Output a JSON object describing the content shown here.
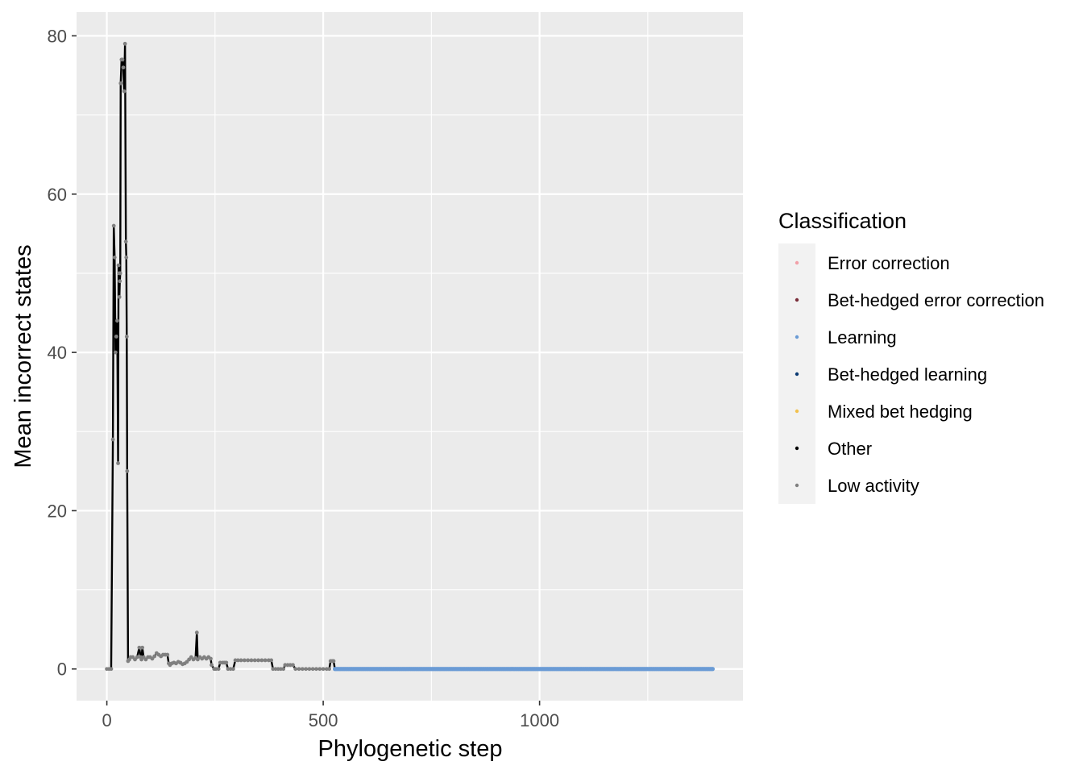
{
  "chart_data": {
    "type": "line",
    "title": "",
    "xlabel": "Phylogenetic step",
    "ylabel": "Mean incorrect states",
    "xlim": [
      -70,
      1470
    ],
    "ylim": [
      -4,
      83
    ],
    "x_ticks": [
      0,
      500,
      1000
    ],
    "x_minor_ticks": [
      250,
      750,
      1250
    ],
    "y_ticks": [
      0,
      20,
      40,
      60,
      80
    ],
    "y_minor_ticks": [
      10,
      30,
      50,
      70
    ],
    "grid": true,
    "line_color": "#000000",
    "legend": {
      "title": "Classification",
      "position": "right",
      "items": [
        {
          "label": "Error correction",
          "color": "#f2a0a8"
        },
        {
          "label": "Bet-hedged error correction",
          "color": "#7a2e3a"
        },
        {
          "label": "Learning",
          "color": "#6a9bd5"
        },
        {
          "label": "Bet-hedged learning",
          "color": "#0b3a73"
        },
        {
          "label": "Mixed bet hedging",
          "color": "#f2c14e"
        },
        {
          "label": "Other",
          "color": "#000000"
        },
        {
          "label": "Low activity",
          "color": "#808080"
        }
      ]
    },
    "series": [
      {
        "name": "Low activity",
        "color": "#808080",
        "points": [
          [
            0,
            0
          ],
          [
            5,
            0
          ],
          [
            10,
            0
          ],
          [
            14,
            29
          ],
          [
            16,
            56
          ],
          [
            18,
            52
          ],
          [
            20,
            40
          ],
          [
            22,
            42
          ],
          [
            24,
            44
          ],
          [
            26,
            26
          ],
          [
            27,
            51
          ],
          [
            28,
            50
          ],
          [
            29,
            47
          ],
          [
            30,
            49
          ],
          [
            31,
            50
          ],
          [
            32,
            74
          ],
          [
            34,
            77
          ],
          [
            36,
            77
          ],
          [
            38,
            76
          ],
          [
            40,
            73
          ],
          [
            42,
            79
          ],
          [
            44,
            54
          ],
          [
            45,
            52
          ],
          [
            46,
            42
          ],
          [
            47,
            25
          ],
          [
            49,
            1
          ],
          [
            52,
            1.2
          ],
          [
            55,
            1.5
          ],
          [
            60,
            1.5
          ],
          [
            65,
            1.2
          ],
          [
            70,
            1.5
          ],
          [
            75,
            2.7
          ],
          [
            78,
            1.5
          ],
          [
            80,
            1.2
          ],
          [
            82,
            2.7
          ],
          [
            85,
            1.5
          ],
          [
            90,
            1.2
          ],
          [
            95,
            1.5
          ],
          [
            100,
            1.5
          ],
          [
            105,
            1.3
          ],
          [
            110,
            1.6
          ],
          [
            115,
            2
          ],
          [
            120,
            1.8
          ],
          [
            125,
            1.6
          ],
          [
            130,
            1.8
          ],
          [
            135,
            1.8
          ],
          [
            140,
            1.8
          ],
          [
            143,
            0.7
          ],
          [
            146,
            0.5
          ],
          [
            150,
            0.7
          ],
          [
            155,
            0.8
          ],
          [
            160,
            0.7
          ],
          [
            165,
            0.9
          ],
          [
            170,
            0.8
          ],
          [
            175,
            0.6
          ],
          [
            180,
            0.7
          ],
          [
            185,
            0.9
          ],
          [
            190,
            1.2
          ],
          [
            195,
            1.5
          ],
          [
            200,
            1.2
          ],
          [
            205,
            1.4
          ],
          [
            208,
            4.6
          ],
          [
            210,
            1.2
          ],
          [
            215,
            1.5
          ],
          [
            220,
            1.3
          ],
          [
            225,
            1.5
          ],
          [
            230,
            1.3
          ],
          [
            235,
            1.5
          ],
          [
            240,
            1.3
          ],
          [
            242,
            0.5
          ],
          [
            248,
            0
          ],
          [
            252,
            0
          ],
          [
            258,
            0
          ],
          [
            262,
            0.8
          ],
          [
            268,
            0.8
          ],
          [
            272,
            0.8
          ],
          [
            276,
            0.8
          ],
          [
            280,
            0
          ],
          [
            286,
            0
          ],
          [
            292,
            0
          ],
          [
            297,
            1.1
          ],
          [
            303,
            1.1
          ],
          [
            310,
            1.1
          ],
          [
            318,
            1.1
          ],
          [
            326,
            1.1
          ],
          [
            334,
            1.1
          ],
          [
            342,
            1.1
          ],
          [
            350,
            1.1
          ],
          [
            358,
            1.1
          ],
          [
            366,
            1.1
          ],
          [
            374,
            1.1
          ],
          [
            380,
            1.1
          ],
          [
            384,
            0
          ],
          [
            390,
            0
          ],
          [
            396,
            0
          ],
          [
            402,
            0
          ],
          [
            408,
            0
          ],
          [
            412,
            0.5
          ],
          [
            418,
            0.5
          ],
          [
            424,
            0.5
          ],
          [
            430,
            0.5
          ],
          [
            436,
            0
          ],
          [
            444,
            0
          ],
          [
            452,
            0
          ],
          [
            460,
            0
          ],
          [
            468,
            0
          ],
          [
            476,
            0
          ],
          [
            484,
            0
          ],
          [
            492,
            0
          ],
          [
            500,
            0
          ],
          [
            508,
            0
          ],
          [
            514,
            0
          ],
          [
            517,
            1
          ],
          [
            521,
            1
          ],
          [
            524,
            1
          ]
        ]
      },
      {
        "name": "Learning",
        "color": "#6a9bd5",
        "x_range": [
          527,
          1400
        ],
        "y": 0
      }
    ]
  }
}
